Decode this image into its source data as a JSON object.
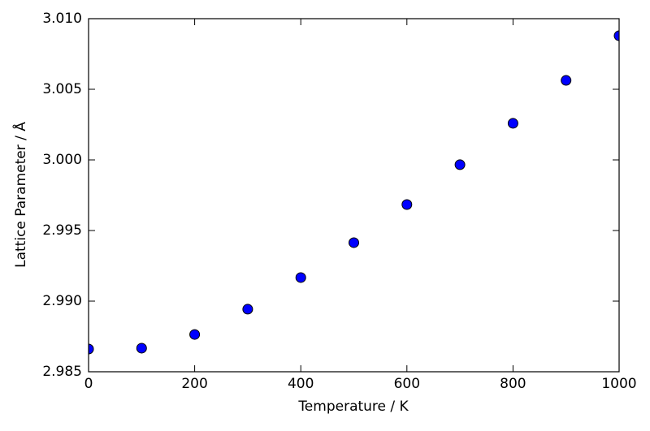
{
  "chart_data": {
    "type": "scatter",
    "x_label": "Temperature / K",
    "y_label": "Lattice Parameter / Å",
    "x": [
      0,
      100,
      200,
      300,
      400,
      500,
      600,
      700,
      800,
      900,
      1000
    ],
    "series": [
      {
        "color": "#0000ff",
        "values": [
          2.98661,
          2.98667,
          2.98764,
          2.98943,
          2.99167,
          2.99414,
          2.99684,
          2.99966,
          3.00259,
          3.00563,
          3.00879
        ]
      }
    ],
    "xlim": [
      0,
      1000
    ],
    "xticks": [
      0,
      200,
      400,
      600,
      800,
      1000
    ],
    "ylim": [
      2.985,
      3.01
    ],
    "yticks": [
      {
        "value": 2.985,
        "label": "2.985"
      },
      {
        "value": 2.99,
        "label": "2.990"
      },
      {
        "value": 2.995,
        "label": "2.995"
      },
      {
        "value": 3.0,
        "label": "3.000"
      },
      {
        "value": 3.005,
        "label": "3.005"
      },
      {
        "value": 3.01,
        "label": "3.010"
      }
    ]
  }
}
